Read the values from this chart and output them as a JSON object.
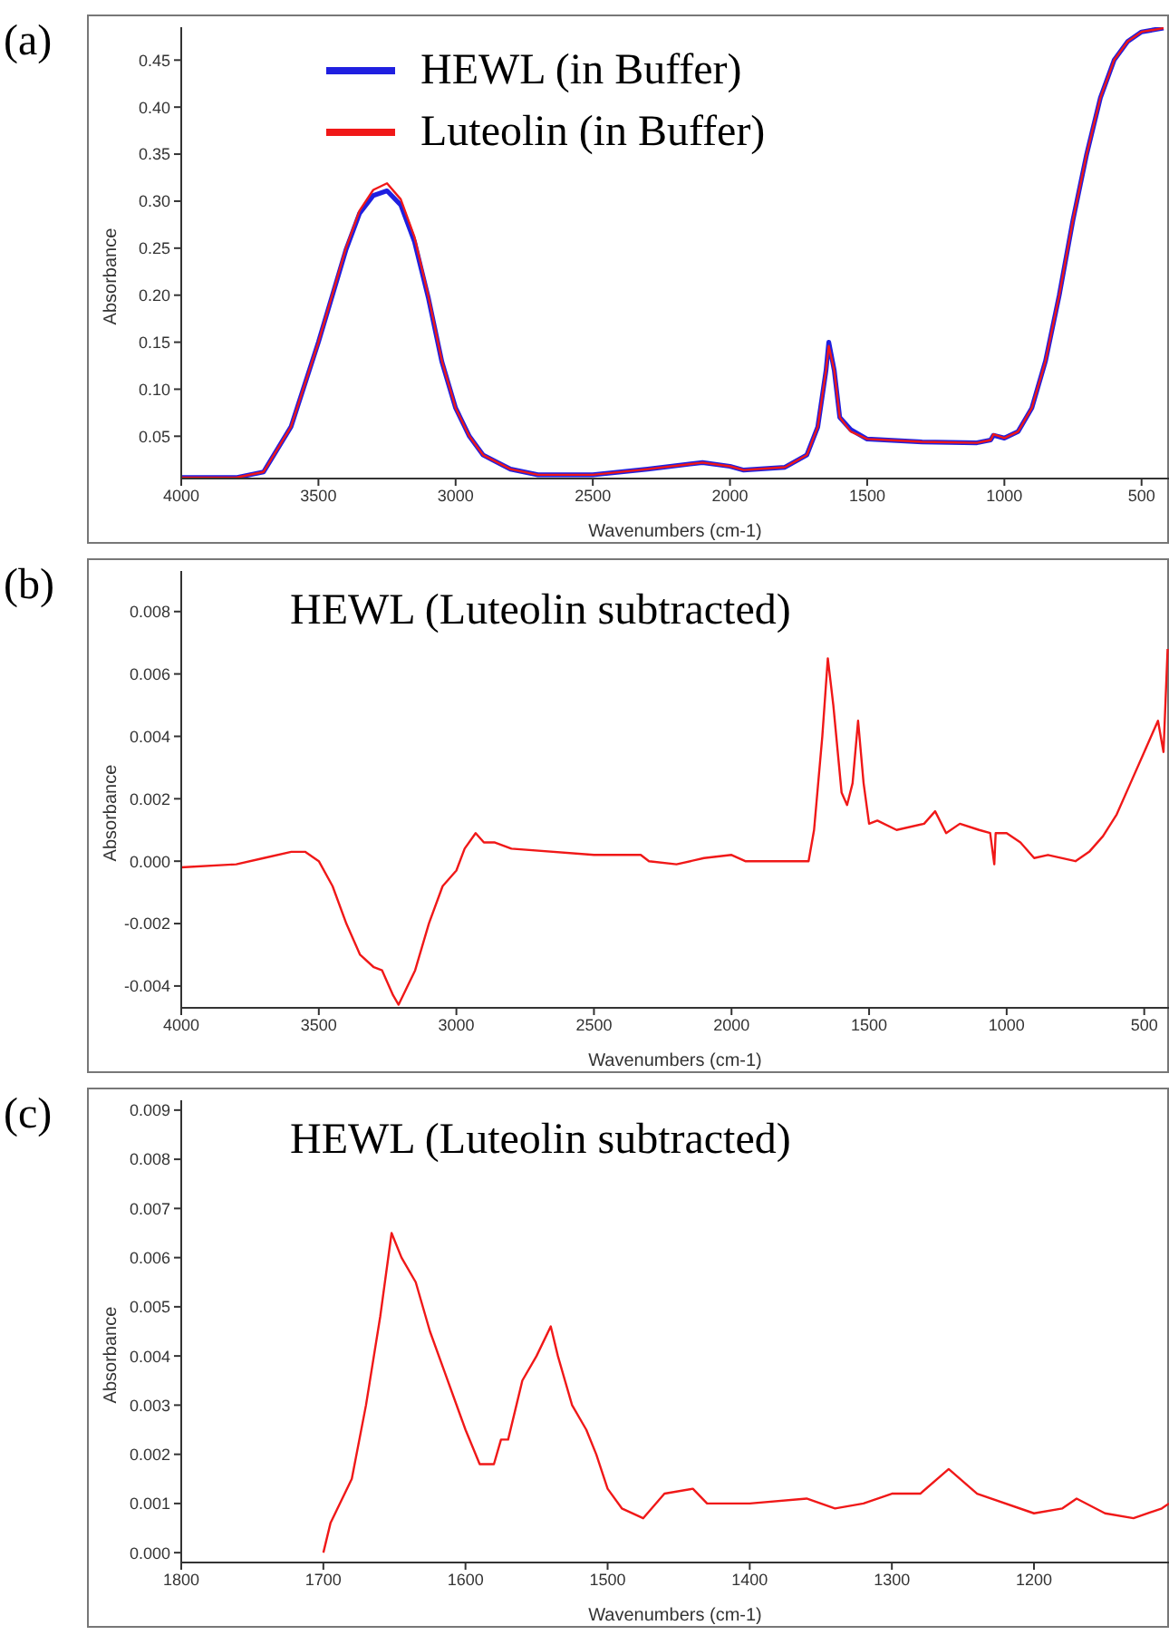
{
  "chart_data": [
    {
      "type": "line",
      "annotations": [
        "(a)"
      ],
      "xlabel": "Wavenumbers (cm-1)",
      "ylabel": "Absorbance",
      "xlim": [
        4000,
        400
      ],
      "xticks": [
        4000,
        3500,
        3000,
        2500,
        2000,
        1500,
        1000,
        500
      ],
      "ylim": [
        0.005,
        0.485
      ],
      "yticks": [
        0.05,
        {
          "value": 0.1,
          "label": "0.10"
        },
        0.15,
        {
          "value": 0.2,
          "label": "0.20"
        },
        0.25,
        {
          "value": 0.3,
          "label": "0.30"
        },
        0.35,
        {
          "value": 0.4,
          "label": "0.40"
        },
        0.45
      ],
      "legend": "top",
      "grid": false,
      "marker": "none",
      "line_style": "solid",
      "series": [
        {
          "name": "HEWL (in Buffer)",
          "color": "#1f1fe0",
          "x": [
            4000,
            3800,
            3700,
            3600,
            3500,
            3400,
            3350,
            3300,
            3250,
            3200,
            3150,
            3100,
            3050,
            3000,
            2950,
            2900,
            2800,
            2700,
            2500,
            2300,
            2100,
            2000,
            1950,
            1800,
            1720,
            1680,
            1650,
            1640,
            1620,
            1600,
            1560,
            1500,
            1300,
            1100,
            1050,
            1040,
            1000,
            950,
            900,
            850,
            800,
            750,
            700,
            650,
            600,
            550,
            500,
            420
          ],
          "values": [
            0.006,
            0.006,
            0.012,
            0.06,
            0.15,
            0.248,
            0.287,
            0.306,
            0.311,
            0.296,
            0.257,
            0.198,
            0.129,
            0.08,
            0.05,
            0.03,
            0.015,
            0.009,
            0.009,
            0.015,
            0.022,
            0.018,
            0.014,
            0.017,
            0.03,
            0.06,
            0.12,
            0.15,
            0.12,
            0.07,
            0.057,
            0.047,
            0.044,
            0.043,
            0.046,
            0.051,
            0.048,
            0.055,
            0.08,
            0.13,
            0.2,
            0.28,
            0.35,
            0.41,
            0.45,
            0.47,
            0.48,
            0.484
          ]
        },
        {
          "name": "Luteolin (in Buffer)",
          "color": "#f01818",
          "x": [
            4000,
            3800,
            3700,
            3600,
            3500,
            3400,
            3350,
            3300,
            3250,
            3200,
            3150,
            3100,
            3050,
            3000,
            2950,
            2900,
            2800,
            2700,
            2500,
            2300,
            2100,
            2000,
            1950,
            1800,
            1720,
            1680,
            1650,
            1640,
            1620,
            1600,
            1560,
            1500,
            1300,
            1100,
            1050,
            1040,
            1000,
            950,
            900,
            850,
            800,
            750,
            700,
            650,
            600,
            550,
            500,
            420
          ],
          "values": [
            0.006,
            0.006,
            0.012,
            0.06,
            0.15,
            0.25,
            0.29,
            0.312,
            0.319,
            0.302,
            0.262,
            0.2,
            0.13,
            0.08,
            0.05,
            0.03,
            0.015,
            0.009,
            0.009,
            0.015,
            0.022,
            0.018,
            0.014,
            0.017,
            0.03,
            0.06,
            0.12,
            0.146,
            0.12,
            0.07,
            0.055,
            0.047,
            0.044,
            0.043,
            0.046,
            0.052,
            0.048,
            0.055,
            0.08,
            0.13,
            0.2,
            0.28,
            0.35,
            0.41,
            0.45,
            0.47,
            0.48,
            0.484
          ]
        }
      ]
    },
    {
      "type": "line",
      "title": "HEWL (Luteolin subtracted)",
      "annotations": [
        "(b)"
      ],
      "xlabel": "Wavenumbers (cm-1)",
      "ylabel": "Absorbance",
      "xlim": [
        4000,
        410
      ],
      "xticks": [
        4000,
        3500,
        3000,
        2500,
        2000,
        1500,
        1000,
        500
      ],
      "ylim": [
        -0.0047,
        0.0093
      ],
      "yticks": [
        {
          "value": -0.004,
          "label": "-0.004"
        },
        {
          "value": -0.002,
          "label": "-0.002"
        },
        {
          "value": 0,
          "label": "0.000"
        },
        {
          "value": 0.002,
          "label": "0.002"
        },
        {
          "value": 0.004,
          "label": "0.004"
        },
        {
          "value": 0.006,
          "label": "0.006"
        },
        {
          "value": 0.008,
          "label": "0.008"
        }
      ],
      "grid": false,
      "marker": "none",
      "line_style": "solid",
      "series": [
        {
          "color": "#f01818",
          "x": [
            4000,
            3800,
            3700,
            3600,
            3550,
            3500,
            3450,
            3400,
            3350,
            3300,
            3270,
            3230,
            3210,
            3150,
            3100,
            3050,
            3000,
            2970,
            2930,
            2900,
            2860,
            2800,
            2500,
            2330,
            2300,
            2200,
            2100,
            2000,
            1950,
            1720,
            1700,
            1670,
            1650,
            1630,
            1600,
            1580,
            1560,
            1540,
            1520,
            1500,
            1470,
            1400,
            1300,
            1260,
            1220,
            1170,
            1100,
            1060,
            1045,
            1040,
            1000,
            950,
            900,
            850,
            750,
            700,
            650,
            600,
            550,
            500,
            450,
            430,
            415
          ],
          "values": [
            -0.0002,
            -0.0001,
            0.0001,
            0.0003,
            0.0003,
            0.0,
            -0.0008,
            -0.002,
            -0.003,
            -0.0034,
            -0.0035,
            -0.0043,
            -0.0046,
            -0.0035,
            -0.002,
            -0.0008,
            -0.0003,
            0.0004,
            0.0009,
            0.0006,
            0.0006,
            0.0004,
            0.0002,
            0.0002,
            0.0,
            -0.0001,
            0.0001,
            0.0002,
            0.0,
            0.0,
            0.001,
            0.004,
            0.0065,
            0.005,
            0.0022,
            0.0018,
            0.0025,
            0.0045,
            0.0025,
            0.0012,
            0.0013,
            0.001,
            0.0012,
            0.0016,
            0.0009,
            0.0012,
            0.001,
            0.0009,
            -0.0001,
            0.0009,
            0.0009,
            0.0006,
            0.0001,
            0.0002,
            0.0,
            0.0003,
            0.0008,
            0.0015,
            0.0025,
            0.0035,
            0.0045,
            0.0035,
            0.0068
          ]
        }
      ]
    },
    {
      "type": "line",
      "title": "HEWL (Luteolin subtracted)",
      "annotations": [
        "(c)"
      ],
      "xlabel": "Wavenumbers (cm-1)",
      "ylabel": "Absorbance",
      "xlim": [
        1800,
        1105
      ],
      "xticks": [
        1800,
        1700,
        1600,
        1500,
        1400,
        1300,
        1200
      ],
      "ylim": [
        -0.0002,
        0.0092
      ],
      "yticks": [
        {
          "value": 0,
          "label": "0.000"
        },
        {
          "value": 0.001,
          "label": "0.001"
        },
        {
          "value": 0.002,
          "label": "0.002"
        },
        {
          "value": 0.003,
          "label": "0.003"
        },
        {
          "value": 0.004,
          "label": "0.004"
        },
        {
          "value": 0.005,
          "label": "0.005"
        },
        {
          "value": 0.006,
          "label": "0.006"
        },
        {
          "value": 0.007,
          "label": "0.007"
        },
        {
          "value": 0.008,
          "label": "0.008"
        },
        {
          "value": 0.009,
          "label": "0.009"
        }
      ],
      "grid": false,
      "marker": "none",
      "line_style": "solid",
      "series": [
        {
          "color": "#f01818",
          "x": [
            1700,
            1695,
            1680,
            1670,
            1660,
            1652,
            1645,
            1635,
            1625,
            1615,
            1600,
            1590,
            1580,
            1575,
            1570,
            1560,
            1550,
            1540,
            1535,
            1525,
            1515,
            1508,
            1500,
            1490,
            1475,
            1460,
            1440,
            1430,
            1400,
            1360,
            1340,
            1320,
            1300,
            1280,
            1260,
            1240,
            1200,
            1180,
            1170,
            1150,
            1130,
            1110,
            1105
          ],
          "values": [
            0.0,
            0.0006,
            0.0015,
            0.003,
            0.0048,
            0.0065,
            0.006,
            0.0055,
            0.0045,
            0.0037,
            0.0025,
            0.0018,
            0.0018,
            0.0023,
            0.0023,
            0.0035,
            0.004,
            0.0046,
            0.004,
            0.003,
            0.0025,
            0.002,
            0.0013,
            0.0009,
            0.0007,
            0.0012,
            0.0013,
            0.001,
            0.001,
            0.0011,
            0.0009,
            0.001,
            0.0012,
            0.0012,
            0.0017,
            0.0012,
            0.0008,
            0.0009,
            0.0011,
            0.0008,
            0.0007,
            0.0009,
            0.001
          ]
        }
      ]
    }
  ]
}
